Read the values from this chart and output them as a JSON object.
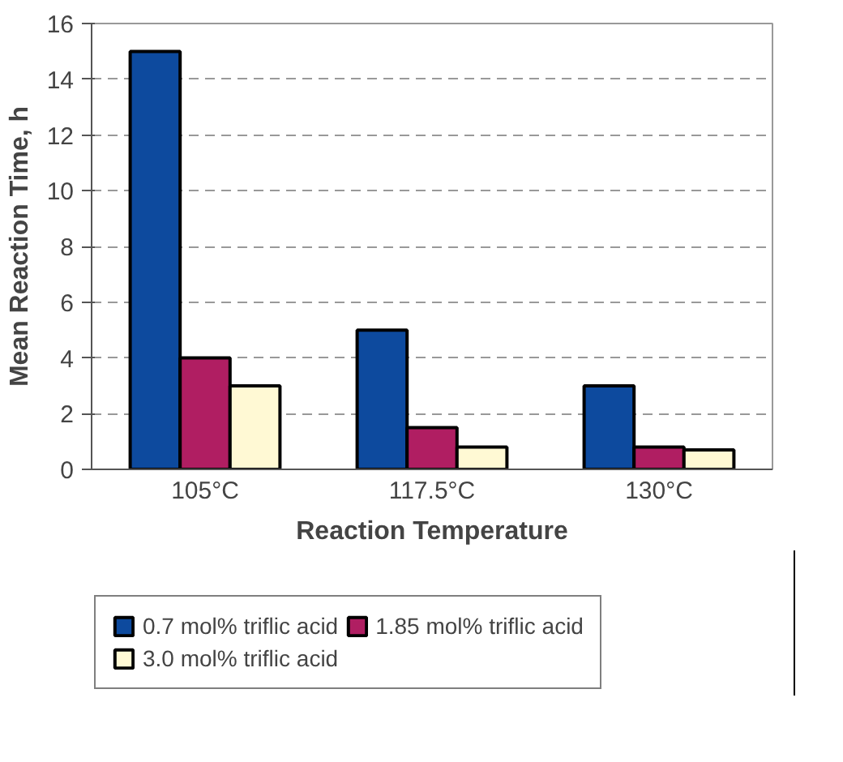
{
  "chart_data": {
    "type": "bar",
    "xlabel": "Reaction Temperature",
    "ylabel": "Mean Reaction Time, h",
    "categories": [
      "105°C",
      "117.5°C",
      "130°C"
    ],
    "series": [
      {
        "name": "0.7 mol% triflic acid",
        "color": "#0d4a9e",
        "values": [
          15.0,
          5.0,
          3.0
        ]
      },
      {
        "name": "1.85 mol% triflic acid",
        "color": "#b01e62",
        "values": [
          4.0,
          1.5,
          0.8
        ]
      },
      {
        "name": "3.0 mol% triflic acid",
        "color": "#fff9d4",
        "values": [
          3.0,
          0.8,
          0.7
        ]
      }
    ],
    "ylim": [
      0,
      16
    ],
    "yticks": [
      0,
      2,
      4,
      6,
      8,
      10,
      12,
      14,
      16
    ],
    "grid": "y",
    "legend": "bottom"
  }
}
